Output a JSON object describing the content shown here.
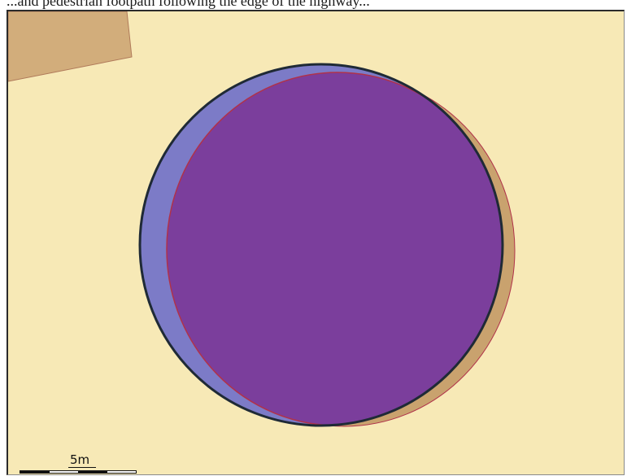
{
  "caption": {
    "text": "...and pedestrian footpath following the edge of the highway..."
  },
  "map": {
    "colors": {
      "background": "#f7e9b6",
      "building": "#d2ad7b",
      "building_outline": "#b07a5a",
      "existing_circle": "#7c7bc7",
      "existing_outline": "#1f2a36",
      "proposed_circle": "#7b3e9c",
      "proposed_outline": "#b0324a",
      "offset_ghost": "#c9a26e"
    },
    "features": [
      {
        "name": "building-parcel",
        "type": "polygon"
      },
      {
        "name": "existing-circle",
        "type": "circle"
      },
      {
        "name": "proposed-circle",
        "type": "circle"
      },
      {
        "name": "ghost-offset-circle",
        "type": "circle"
      }
    ]
  },
  "scalebar": {
    "label": "5m",
    "segments": [
      "dark",
      "light",
      "dark",
      "light"
    ]
  }
}
